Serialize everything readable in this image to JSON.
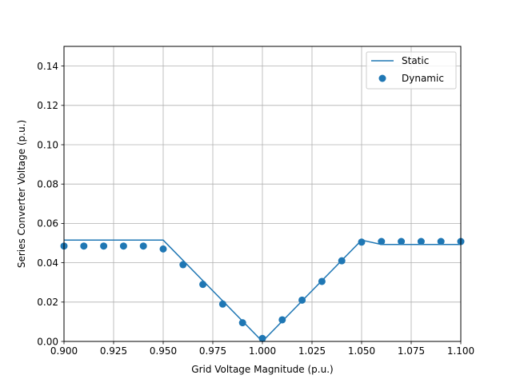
{
  "chart_data": {
    "type": "line",
    "title": "",
    "xlabel": "Grid Voltage Magnitude (p.u.)",
    "ylabel": "Series Converter Voltage (p.u.)",
    "xlim": [
      0.9,
      1.1
    ],
    "ylim": [
      0.0,
      0.15
    ],
    "xticks": [
      "0.900",
      "0.925",
      "0.950",
      "0.975",
      "1.000",
      "1.025",
      "1.050",
      "1.075",
      "1.100"
    ],
    "yticks": [
      "0.00",
      "0.02",
      "0.04",
      "0.06",
      "0.08",
      "0.10",
      "0.12",
      "0.14"
    ],
    "grid": true,
    "legend_position": "top-right",
    "series": [
      {
        "name": "Static",
        "style": "line",
        "color": "#1f77b4",
        "x": [
          0.9,
          0.95,
          1.0,
          1.05,
          1.06,
          1.1
        ],
        "y": [
          0.0515,
          0.0515,
          0.0,
          0.0515,
          0.0493,
          0.0493
        ]
      },
      {
        "name": "Dynamic",
        "style": "scatter",
        "color": "#1f77b4",
        "x": [
          0.9,
          0.91,
          0.92,
          0.93,
          0.94,
          0.95,
          0.96,
          0.97,
          0.98,
          0.99,
          1.0,
          1.01,
          1.02,
          1.03,
          1.04,
          1.05,
          1.06,
          1.07,
          1.08,
          1.09,
          1.1
        ],
        "y": [
          0.0485,
          0.0485,
          0.0485,
          0.0485,
          0.0485,
          0.047,
          0.039,
          0.029,
          0.019,
          0.0095,
          0.0015,
          0.011,
          0.021,
          0.0305,
          0.041,
          0.0505,
          0.0508,
          0.0508,
          0.0508,
          0.0508,
          0.0508
        ]
      }
    ]
  }
}
